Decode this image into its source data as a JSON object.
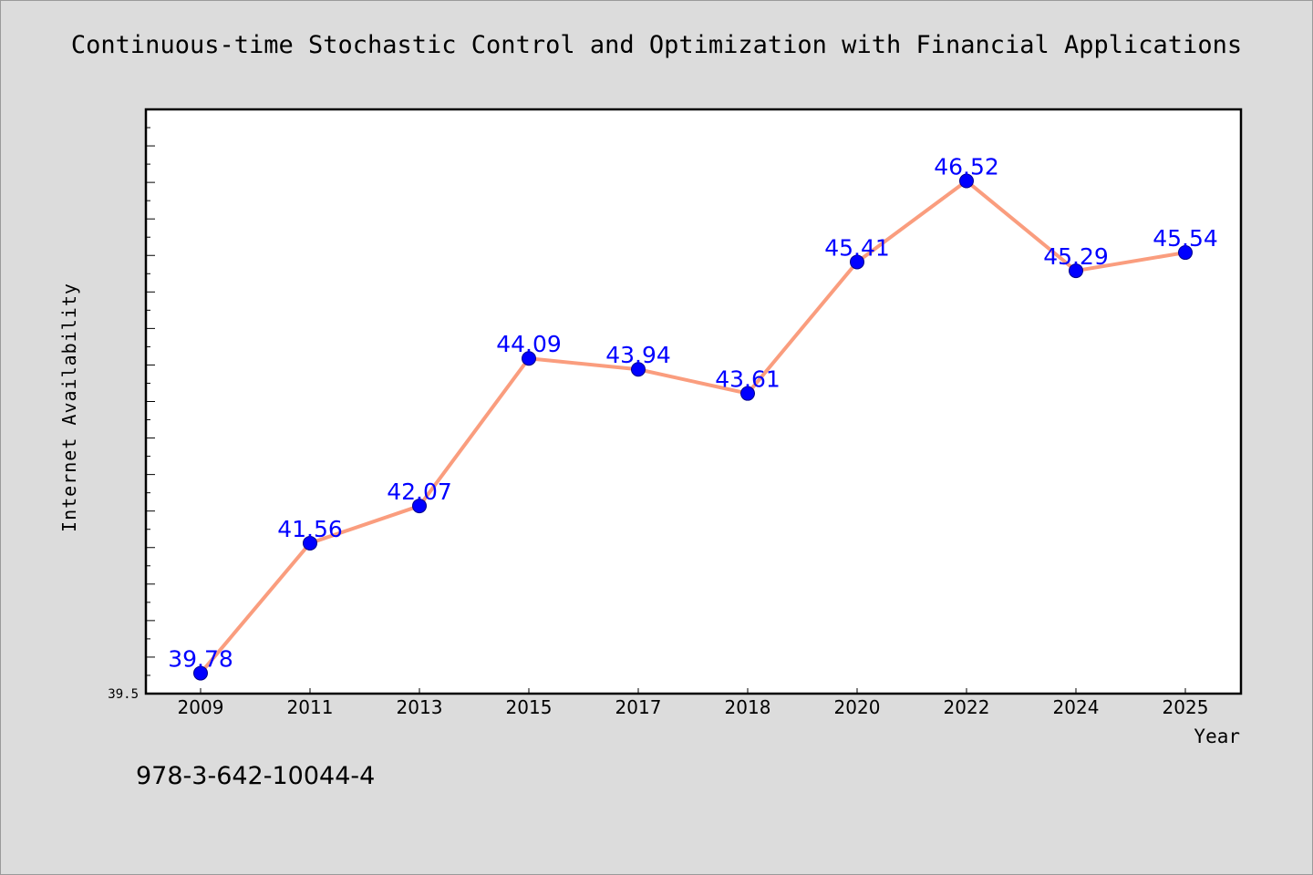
{
  "chart_data": {
    "type": "line",
    "title": "Continuous-time Stochastic Control and Optimization with Financial Applications",
    "xlabel": "Year",
    "ylabel": "Internet Availability",
    "categories": [
      "2009",
      "2011",
      "2013",
      "2015",
      "2017",
      "2018",
      "2020",
      "2022",
      "2024",
      "2025"
    ],
    "series": [
      {
        "values": [
          39.78,
          41.56,
          42.07,
          44.09,
          43.94,
          43.61,
          45.41,
          46.52,
          45.29,
          45.54
        ],
        "labels": [
          "39.78",
          "41.56",
          "42.07",
          "44.09",
          "43.94",
          "43.61",
          "45.41",
          "46.52",
          "45.29",
          "45.54"
        ]
      }
    ],
    "ylim": [
      39.5,
      47.5
    ],
    "yticks": [
      "39.5"
    ],
    "grid": false,
    "legend": "none",
    "colors": {
      "line": "#fa9d7e",
      "marker": "#0000ff",
      "data_label": "#0000ff",
      "background": "#dcdcdc",
      "plot_area": "#ffffff"
    }
  },
  "note": "978-3-642-10044-4"
}
